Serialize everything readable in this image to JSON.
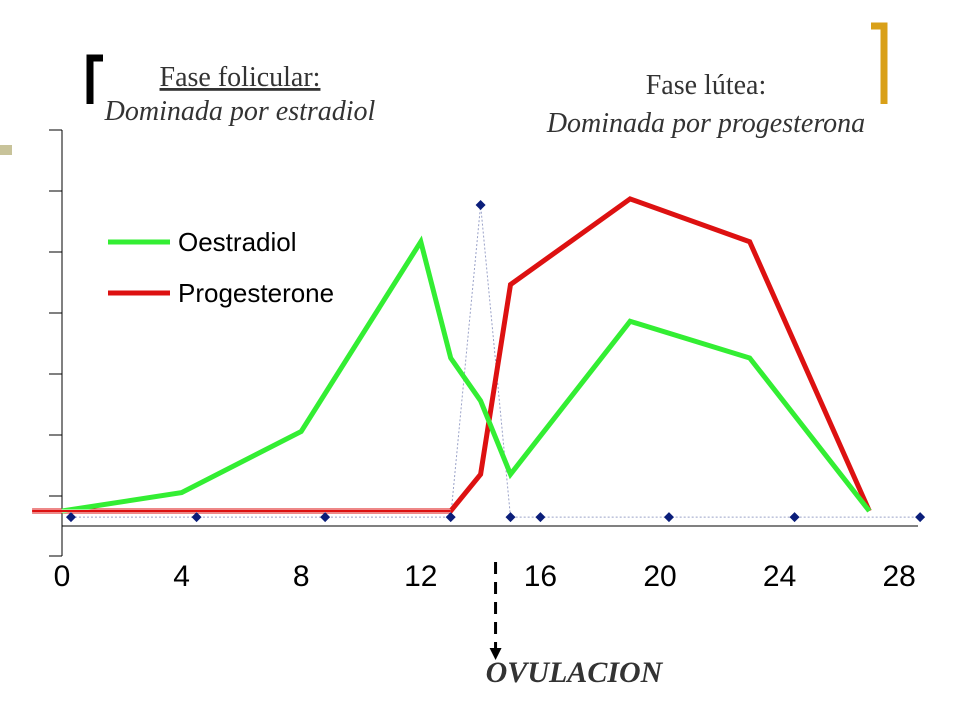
{
  "annotations": {
    "follicular_title": "Fase folicular:",
    "follicular_sub": "Dominada por estradiol",
    "luteal_title": "Fase lútea:",
    "luteal_sub": "Dominada por  progesterona",
    "ovulation": "OVULACION"
  },
  "colors": {
    "oestradiol": "#33ee33",
    "progesterone": "#dd1111",
    "lh_marker": "#0b1e7a",
    "bracket_left": "#000000",
    "bracket_right": "#d9a018",
    "side_square": "#c8c39a"
  },
  "chart_data": {
    "type": "line",
    "title": "",
    "xlabel": "",
    "ylabel": "",
    "xlim": [
      0,
      28
    ],
    "ylim": [
      0,
      11
    ],
    "x_ticks": [
      "0",
      "4",
      "8",
      "12",
      "16",
      "20",
      "24",
      "28"
    ],
    "x_tick_values": [
      0,
      4,
      8,
      12,
      16,
      20,
      24,
      28
    ],
    "legend": {
      "position": "top-left"
    },
    "series": [
      {
        "name": "Oestradiol",
        "x": [
          0,
          4,
          8,
          12,
          13,
          14,
          15,
          19,
          23,
          27
        ],
        "y": [
          0,
          0.3,
          1.3,
          4.4,
          2.5,
          1.8,
          0.6,
          3.1,
          2.5,
          0
        ]
      },
      {
        "name": "Progesterone",
        "x": [
          -1,
          13,
          14,
          15,
          19,
          23,
          27
        ],
        "y": [
          0,
          0,
          0.6,
          3.7,
          5.1,
          4.4,
          0
        ]
      },
      {
        "name": "",
        "x": [
          0.3,
          4.5,
          8.8,
          13,
          14,
          15,
          16,
          20.3,
          24.5,
          28.7
        ],
        "y": [
          -0.1,
          -0.1,
          -0.1,
          -0.1,
          5.0,
          -0.1,
          -0.1,
          -0.1,
          -0.1,
          -0.1
        ]
      }
    ],
    "ovulation_day": 14.5
  }
}
